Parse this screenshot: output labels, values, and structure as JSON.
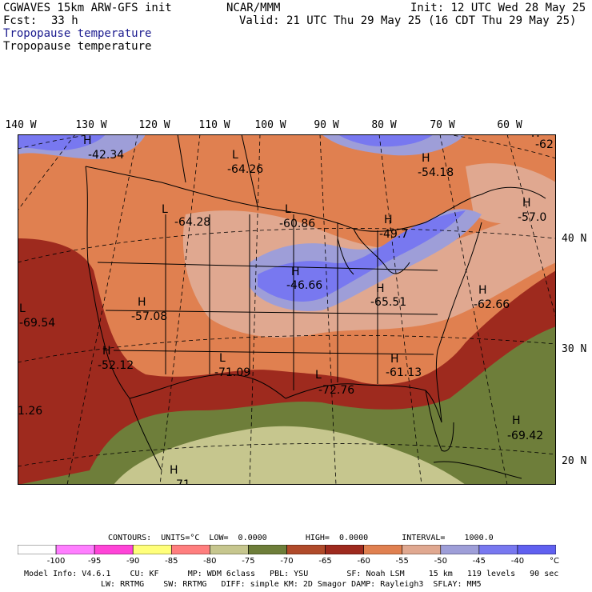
{
  "header": {
    "model": "CGWAVES 15km ARW-GFS init",
    "fcst_label": "Fcst:",
    "fcst_value": "33 h",
    "org": "NCAR/MMM",
    "init": "Init: 12 UTC Wed 28 May 25",
    "valid": "Valid: 21 UTC Thu 29 May 25 (16 CDT Thu 29 May 25)",
    "field_title_1": "Tropopause temperature",
    "field_title_2": "Tropopause temperature"
  },
  "axes": {
    "longitudes": [
      "140 W",
      "130 W",
      "120 W",
      "110 W",
      "100 W",
      "90 W",
      "80 W",
      "70 W",
      "60 W"
    ],
    "latitudes": [
      "40 N",
      "30 N",
      "20 N"
    ]
  },
  "pressure_labels": [
    {
      "letter": "H",
      "value": "-42.34"
    },
    {
      "letter": "L",
      "value": "-64.26"
    },
    {
      "letter": "H",
      "value": "-54.18"
    },
    {
      "letter": "H",
      "value": "-62"
    },
    {
      "letter": "L",
      "value": "-64.28"
    },
    {
      "letter": "L",
      "value": "-60.86"
    },
    {
      "letter": "H",
      "value": "-49.7"
    },
    {
      "letter": "H",
      "value": "-57.0"
    },
    {
      "letter": "H",
      "value": "-46.66"
    },
    {
      "letter": "L",
      "value": "-69.54"
    },
    {
      "letter": "H",
      "value": "-57.08"
    },
    {
      "letter": "H",
      "value": "-65.51"
    },
    {
      "letter": "H",
      "value": "-62.66"
    },
    {
      "letter": "H",
      "value": "-52.12"
    },
    {
      "letter": "L",
      "value": "-71.09"
    },
    {
      "letter": "L",
      "value": "-72.76"
    },
    {
      "letter": "H",
      "value": "-61.13"
    },
    {
      "letter": "",
      "value": "1.26"
    },
    {
      "letter": "H",
      "value": "-69.42"
    },
    {
      "letter": "H",
      "value": "71"
    }
  ],
  "contours": {
    "text": "CONTOURS:  UNITS=°C  LOW=  0.0000        HIGH=  0.0000       INTERVAL=    1000.0"
  },
  "colorbar": {
    "colors": [
      "#ffffff",
      "#ff7eff",
      "#ff44d8",
      "#ffff7a",
      "#ff7e7e",
      "#c6c68e",
      "#6e7e3a",
      "#b04a2a",
      "#9e2a1e",
      "#e08050",
      "#e0a890",
      "#9e9ed8",
      "#7878f0",
      "#6060f0"
    ],
    "labels": [
      "-100",
      "-95",
      "-90",
      "-85",
      "-80",
      "-75",
      "-70",
      "-65",
      "-60",
      "-55",
      "-50",
      "-45",
      "-40",
      "°C"
    ]
  },
  "model_info": {
    "line1": "Model Info: V4.6.1    CU: KF      MP: WDM 6class   PBL: YSU        SF: Noah LSM     15 km   119 levels   90 sec",
    "line2": "LW: RRTMG    SW: RRTMG   DIFF: simple KM: 2D Smagor DAMP: Rayleigh3  SFLAY: MM5"
  },
  "palette": {
    "ocean_warm": "#6e7e3a",
    "gulf_light": "#c6c68e",
    "deep_red": "#9e2a1e",
    "orange": "#e08050",
    "pink": "#e0a890",
    "lavender": "#9e9ed8",
    "blue": "#7878f0",
    "border": "#000000"
  }
}
